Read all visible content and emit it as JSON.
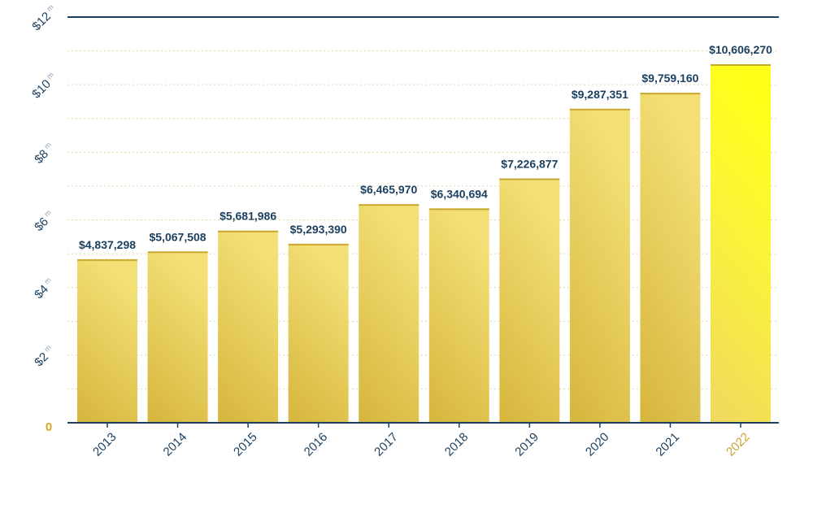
{
  "chart_data": {
    "type": "bar",
    "categories": [
      "2013",
      "2014",
      "2015",
      "2016",
      "2017",
      "2018",
      "2019",
      "2020",
      "2021",
      "2022"
    ],
    "values": [
      4837298,
      5067508,
      5681986,
      5293390,
      6465970,
      6340694,
      7226877,
      9287351,
      9759160,
      10606270
    ],
    "value_labels": [
      "$4,837,298",
      "$5,067,508",
      "$5,681,986",
      "$5,293,390",
      "$6,465,970",
      "$6,340,694",
      "$7,226,877",
      "$9,287,351",
      "$9,759,160",
      "$10,606,270"
    ],
    "highlight_index": 9,
    "ylim": [
      0,
      12000000
    ],
    "y_ticks": [
      {
        "value": 0,
        "label": "0",
        "unit": ""
      },
      {
        "value": 2000000,
        "label": "$2",
        "unit": "m"
      },
      {
        "value": 4000000,
        "label": "$4",
        "unit": "m"
      },
      {
        "value": 6000000,
        "label": "$6",
        "unit": "m"
      },
      {
        "value": 8000000,
        "label": "$8",
        "unit": "m"
      },
      {
        "value": 10000000,
        "label": "$10",
        "unit": "m"
      },
      {
        "value": 12000000,
        "label": "$12",
        "unit": "m"
      }
    ],
    "grid": true,
    "title": "",
    "xlabel": "",
    "ylabel": ""
  },
  "colors": {
    "axis": "#1b3f5e",
    "grid": "#d9d9a6",
    "bar_top": "#f3df75",
    "bar_bottom": "#d6b53c",
    "bar_cap": "#c9a832",
    "highlight_top": "#ffff1a",
    "highlight_bottom": "#f0d860",
    "label": "#1b3f5e",
    "zero_label": "#d4a820",
    "highlight_tick": "#c8a12a"
  }
}
